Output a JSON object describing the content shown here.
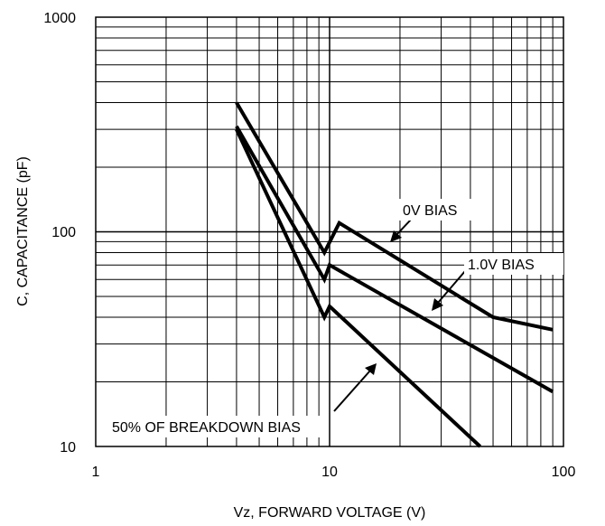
{
  "chart_data": {
    "type": "line",
    "xscale": "log",
    "yscale": "log",
    "xlim": [
      1,
      100
    ],
    "ylim": [
      10,
      1000
    ],
    "xlabel": "Vz, FORWARD VOLTAGE (V)",
    "ylabel": "C, CAPACITANCE (pF)",
    "x_ticks": [
      "1",
      "10",
      "100"
    ],
    "y_ticks": [
      "10",
      "100",
      "1000"
    ],
    "grid": true,
    "series": [
      {
        "name": "0V BIAS",
        "x": [
          4,
          9.5,
          11,
          50,
          90
        ],
        "y": [
          400,
          80,
          110,
          40,
          35
        ]
      },
      {
        "name": "1.0V BIAS",
        "x": [
          4,
          9.5,
          10,
          90
        ],
        "y": [
          310,
          60,
          70,
          18
        ]
      },
      {
        "name": "50% OF BREAKDOWN BIAS",
        "x": [
          4,
          9.5,
          10,
          44
        ],
        "y": [
          300,
          40,
          45,
          10
        ]
      }
    ],
    "annotations": [
      {
        "text": "0V BIAS"
      },
      {
        "text": "1.0V BIAS"
      },
      {
        "text": "50% OF BREAKDOWN BIAS"
      }
    ]
  }
}
